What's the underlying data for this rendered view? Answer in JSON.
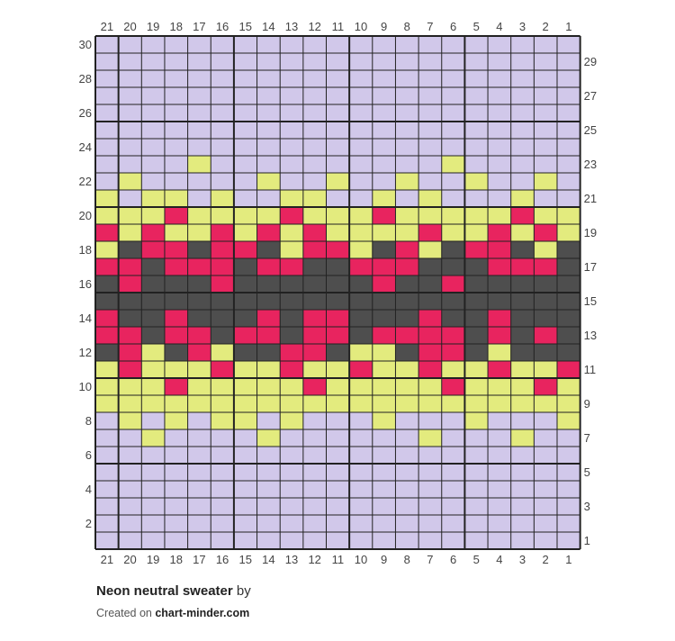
{
  "title": "Neon neutral sweater",
  "by_text": "by",
  "credit_prefix": "Created on",
  "credit_site": "chart-minder.com",
  "colors": {
    "L": "#d1c8ea",
    "Y": "#e3eb7e",
    "P": "#e8245f",
    "D": "#4e4e4e",
    "grid": "#222222"
  },
  "chart_data": {
    "type": "knitting-chart",
    "columns": 21,
    "rows": 30,
    "column_labels": [
      21,
      20,
      19,
      18,
      17,
      16,
      15,
      14,
      13,
      12,
      11,
      10,
      9,
      8,
      7,
      6,
      5,
      4,
      3,
      2,
      1
    ],
    "left_row_labels": [
      30,
      28,
      26,
      24,
      22,
      20,
      18,
      16,
      14,
      12,
      10,
      8,
      6,
      4,
      2
    ],
    "right_row_labels": [
      29,
      27,
      25,
      23,
      21,
      19,
      17,
      15,
      13,
      11,
      9,
      7,
      5,
      3,
      1
    ],
    "legend_colors": {
      "L": "lavender",
      "Y": "lime",
      "P": "pink",
      "D": "dark grey"
    },
    "grid_rows_top_to_bottom": [
      "LLLLLLLLLLLLLLLLLLLLL",
      "LLLLLLLLLLLLLLLLLLLLL",
      "LLLLLLLLLLLLLLLLLLLLL",
      "LLLLLLLLLLLLLLLLLLLLL",
      "LLLLLLLLLLLLLLLLLLLLL",
      "LLLLLLLLLLLLLLLLLLLLL",
      "LLLLLLLLLLLLLLLLLLLLL",
      "LLLLYLLLLLLLLLLYLLLLL",
      "LYLLLLLYLLYLLYLLYLLYL",
      "YLYYLYLLYYLLYLYLLLYLL",
      "YYYPYYYYPYYYPYYYYYPYY",
      "PYPYYPYPYPYYYYPYYPYPY",
      "YDPPDPPDYPPYDPYDPPDYD",
      "PPDPPPDPPDDPPPDDDPPPD",
      "DPDDDPDDDDDDPDDPDDDDD",
      "DDDDDDDDDDDDDDDDDDDDD",
      "PDDPDDDPDPPDDDPDDPDDD",
      "PPDPPDPPDPPDPPPPDPDPD",
      "DPYDPYDDPPDYYDPPDYDDD",
      "YPYYYPYYPYYPYYPYYPYYP",
      "YYYPYYYYYPYYYYYPYYYPY",
      "YYYYYYYYYYYYYYYYYYYYY",
      "LYLYLYYLYLLLYLLLYLLLY",
      "LLYLLLLYLLLLLLYLLLYLL",
      "LLLLLLLLLLLLLLLLLLLLL",
      "LLLLLLLLLLLLLLLLLLLLL",
      "LLLLLLLLLLLLLLLLLLLLL",
      "LLLLLLLLLLLLLLLLLLLLL",
      "LLLLLLLLLLLLLLLLLLLLL",
      "LLLLLLLLLLLLLLLLLLLLL"
    ]
  }
}
